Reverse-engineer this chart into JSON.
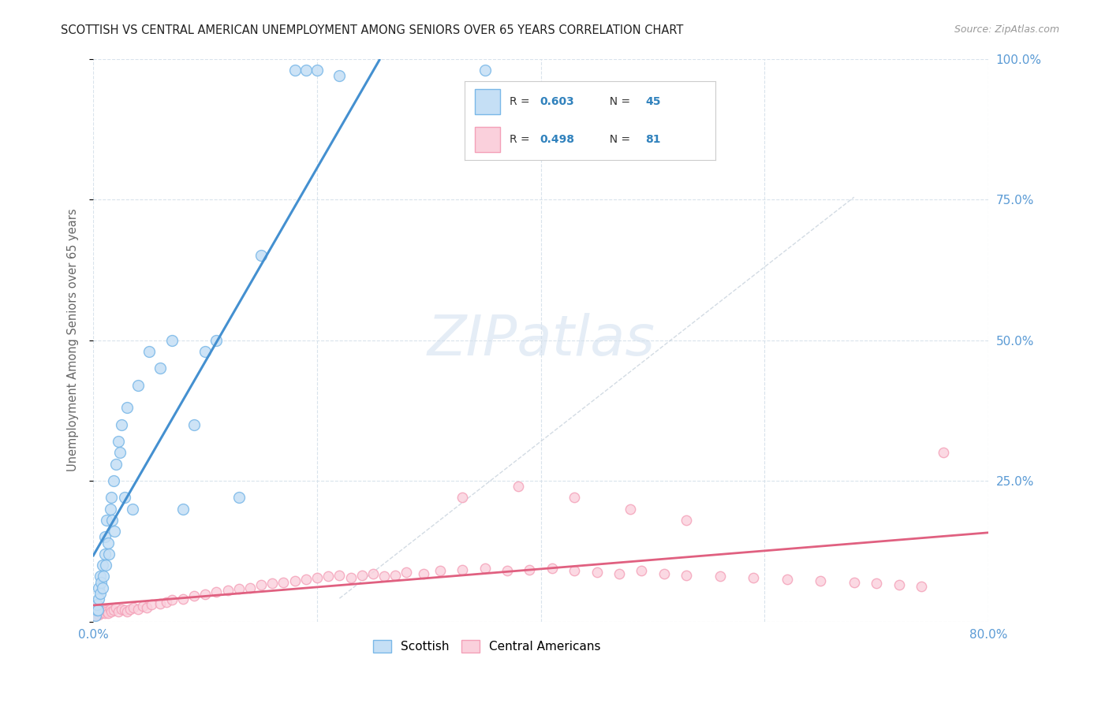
{
  "title": "SCOTTISH VS CENTRAL AMERICAN UNEMPLOYMENT AMONG SENIORS OVER 65 YEARS CORRELATION CHART",
  "source": "Source: ZipAtlas.com",
  "ylabel": "Unemployment Among Seniors over 65 years",
  "xlim": [
    0.0,
    0.8
  ],
  "ylim": [
    0.0,
    1.0
  ],
  "watermark_zip": "ZIP",
  "watermark_atlas": "atlas",
  "scottish_color": "#7ab8e8",
  "scottish_fill": "#c5dff5",
  "central_color": "#f4a0b8",
  "central_fill": "#fad0dc",
  "reg_blue": "#4490d0",
  "reg_pink": "#e06080",
  "diag_color": "#c0ccd8",
  "grid_color": "#d5e0ea",
  "background_color": "#ffffff",
  "tick_color": "#5b9bd5",
  "scottish_x": [
    0.002,
    0.003,
    0.003,
    0.004,
    0.005,
    0.005,
    0.006,
    0.006,
    0.007,
    0.008,
    0.008,
    0.009,
    0.01,
    0.01,
    0.011,
    0.012,
    0.013,
    0.014,
    0.015,
    0.016,
    0.017,
    0.018,
    0.019,
    0.02,
    0.022,
    0.024,
    0.025,
    0.028,
    0.03,
    0.035,
    0.04,
    0.05,
    0.06,
    0.07,
    0.08,
    0.09,
    0.1,
    0.11,
    0.13,
    0.15,
    0.18,
    0.19,
    0.2,
    0.22,
    0.35
  ],
  "scottish_y": [
    0.01,
    0.02,
    0.03,
    0.02,
    0.04,
    0.06,
    0.05,
    0.08,
    0.07,
    0.06,
    0.1,
    0.08,
    0.12,
    0.15,
    0.1,
    0.18,
    0.14,
    0.12,
    0.2,
    0.22,
    0.18,
    0.25,
    0.16,
    0.28,
    0.32,
    0.3,
    0.35,
    0.22,
    0.38,
    0.2,
    0.42,
    0.48,
    0.45,
    0.5,
    0.2,
    0.35,
    0.48,
    0.5,
    0.22,
    0.65,
    0.98,
    0.98,
    0.98,
    0.97,
    0.98
  ],
  "central_x": [
    0.001,
    0.002,
    0.003,
    0.004,
    0.004,
    0.005,
    0.005,
    0.006,
    0.007,
    0.008,
    0.009,
    0.01,
    0.011,
    0.012,
    0.013,
    0.015,
    0.016,
    0.018,
    0.02,
    0.022,
    0.025,
    0.028,
    0.03,
    0.033,
    0.036,
    0.04,
    0.044,
    0.048,
    0.052,
    0.06,
    0.065,
    0.07,
    0.08,
    0.09,
    0.1,
    0.11,
    0.12,
    0.13,
    0.14,
    0.15,
    0.16,
    0.17,
    0.18,
    0.19,
    0.2,
    0.21,
    0.22,
    0.23,
    0.24,
    0.25,
    0.26,
    0.27,
    0.28,
    0.295,
    0.31,
    0.33,
    0.35,
    0.37,
    0.39,
    0.41,
    0.43,
    0.45,
    0.47,
    0.49,
    0.51,
    0.53,
    0.56,
    0.59,
    0.62,
    0.65,
    0.68,
    0.7,
    0.72,
    0.74,
    0.33,
    0.38,
    0.43,
    0.48,
    0.53,
    0.76
  ],
  "central_y": [
    0.015,
    0.01,
    0.02,
    0.015,
    0.025,
    0.012,
    0.02,
    0.018,
    0.015,
    0.022,
    0.018,
    0.015,
    0.02,
    0.018,
    0.015,
    0.022,
    0.018,
    0.02,
    0.025,
    0.018,
    0.022,
    0.02,
    0.018,
    0.022,
    0.025,
    0.022,
    0.028,
    0.025,
    0.03,
    0.032,
    0.035,
    0.038,
    0.04,
    0.045,
    0.048,
    0.052,
    0.055,
    0.058,
    0.06,
    0.065,
    0.068,
    0.07,
    0.072,
    0.075,
    0.078,
    0.08,
    0.082,
    0.078,
    0.082,
    0.085,
    0.08,
    0.082,
    0.088,
    0.085,
    0.09,
    0.092,
    0.095,
    0.09,
    0.092,
    0.095,
    0.09,
    0.088,
    0.085,
    0.09,
    0.085,
    0.082,
    0.08,
    0.078,
    0.075,
    0.072,
    0.07,
    0.068,
    0.065,
    0.062,
    0.22,
    0.24,
    0.22,
    0.2,
    0.18,
    0.3
  ]
}
